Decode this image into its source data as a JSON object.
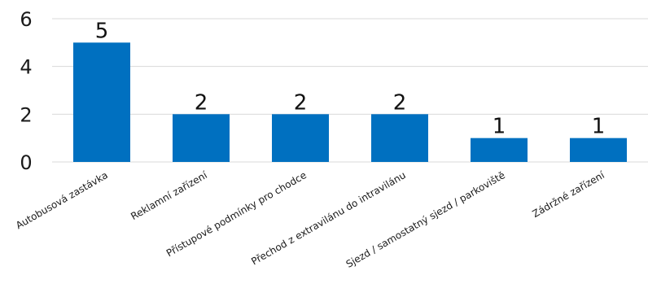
{
  "chart_data": {
    "type": "bar",
    "categories": [
      "Autobusová zastávka",
      "Reklamní zařízení",
      "Přístupové podmínky pro chodce",
      "Přechod z extravilánu do intravilánu",
      "Sjezd / samostatný sjezd / parkoviště",
      "Zádržné zařízení"
    ],
    "values": [
      5,
      2,
      2,
      2,
      1,
      1
    ],
    "data_labels": [
      "5",
      "2",
      "2",
      "2",
      "1",
      "1"
    ],
    "y_ticks": [
      "0",
      "2",
      "4",
      "6"
    ],
    "ylim": [
      0,
      6
    ],
    "grid": true,
    "legend": "none",
    "colors": {
      "bar": "#0070c0",
      "grid": "#d9d9d9",
      "text": "#1a1a1a"
    }
  }
}
